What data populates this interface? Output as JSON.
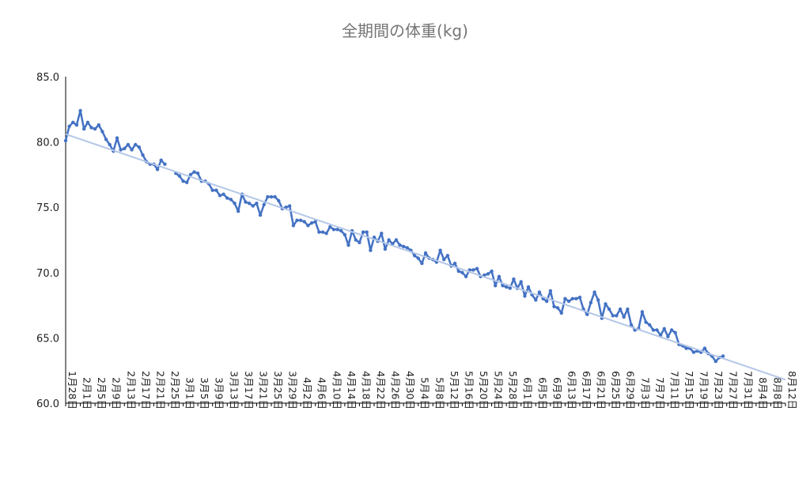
{
  "chart_data": {
    "type": "line",
    "title": "全期間の体重(kg)",
    "xlabel": "",
    "ylabel": "",
    "ylim": [
      60,
      85
    ],
    "yticks": [
      "60.0",
      "65.0",
      "70.0",
      "75.0",
      "80.0",
      "85.0"
    ],
    "x_start": "1月28日",
    "x_end": "8月12日",
    "x_tick_labels": [
      "1月28日",
      "2月1日",
      "2月5日",
      "2月9日",
      "2月13日",
      "2月17日",
      "2月21日",
      "2月25日",
      "3月1日",
      "3月5日",
      "3月9日",
      "3月13日",
      "3月17日",
      "3月21日",
      "3月25日",
      "3月29日",
      "4月2日",
      "4月6日",
      "4月10日",
      "4月14日",
      "4月18日",
      "4月22日",
      "4月26日",
      "4月30日",
      "5月4日",
      "5月8日",
      "5月12日",
      "5月16日",
      "5月20日",
      "5月24日",
      "5月28日",
      "6月1日",
      "6月5日",
      "6月9日",
      "6月13日",
      "6月17日",
      "6月21日",
      "6月25日",
      "6月29日",
      "7月3日",
      "7月7日",
      "7月11日",
      "7月15日",
      "7月19日",
      "7月23日",
      "7月27日",
      "7月31日",
      "8月4日",
      "8月8日",
      "8月12日"
    ],
    "series": [
      {
        "color": "#4472c4",
        "points": [
          [
            "1月28日",
            80.1
          ],
          [
            "1月29日",
            81.2
          ],
          [
            "1月30日",
            81.5
          ],
          [
            "1月31日",
            81.3
          ],
          [
            "2月1日",
            82.4
          ],
          [
            "2月2日",
            81.0
          ],
          [
            "2月3日",
            81.5
          ],
          [
            "2月4日",
            81.1
          ],
          [
            "2月5日",
            81.0
          ],
          [
            "2月6日",
            81.3
          ],
          [
            "2月7日",
            80.8
          ],
          [
            "2月8日",
            80.2
          ],
          [
            "2月9日",
            79.8
          ],
          [
            "2月10日",
            79.3
          ],
          [
            "2月11日",
            80.3
          ],
          [
            "2月12日",
            79.4
          ],
          [
            "2月13日",
            79.5
          ],
          [
            "2月14日",
            79.8
          ],
          [
            "2月15日",
            79.4
          ],
          [
            "2月16日",
            79.8
          ],
          [
            "2月17日",
            79.6
          ],
          [
            "2月18日",
            79.0
          ],
          [
            "2月19日",
            78.5
          ],
          [
            "2月20日",
            78.3
          ],
          [
            "2月21日",
            78.3
          ],
          [
            "2月22日",
            77.9
          ],
          [
            "2月23日",
            78.6
          ],
          [
            "2月24日",
            78.3
          ],
          [
            "2月27日",
            77.6
          ],
          [
            "2月28日",
            77.4
          ],
          [
            "3月1日",
            77.0
          ],
          [
            "3月2日",
            76.9
          ],
          [
            "3月3日",
            77.5
          ],
          [
            "3月4日",
            77.7
          ],
          [
            "3月5日",
            77.6
          ],
          [
            "3月6日",
            77.0
          ],
          [
            "3月7日",
            77.0
          ],
          [
            "3月8日",
            76.8
          ],
          [
            "3月9日",
            76.3
          ],
          [
            "3月10日",
            76.3
          ],
          [
            "3月11日",
            75.9
          ],
          [
            "3月12日",
            76.0
          ],
          [
            "3月13日",
            75.7
          ],
          [
            "3月14日",
            75.6
          ],
          [
            "3月15日",
            75.3
          ],
          [
            "3月16日",
            74.7
          ],
          [
            "3月17日",
            76.0
          ],
          [
            "3月18日",
            75.4
          ],
          [
            "3月19日",
            75.3
          ],
          [
            "3月20日",
            75.1
          ],
          [
            "3月21日",
            75.3
          ],
          [
            "3月22日",
            74.4
          ],
          [
            "3月23日",
            75.2
          ],
          [
            "3月24日",
            75.8
          ],
          [
            "3月25日",
            75.8
          ],
          [
            "3月26日",
            75.8
          ],
          [
            "3月27日",
            75.5
          ],
          [
            "3月28日",
            74.9
          ],
          [
            "3月29日",
            75.0
          ],
          [
            "3月30日",
            75.1
          ],
          [
            "3月31日",
            73.6
          ],
          [
            "4月1日",
            74.0
          ],
          [
            "4月2日",
            74.0
          ],
          [
            "4月3日",
            73.9
          ],
          [
            "4月4日",
            73.6
          ],
          [
            "4月5日",
            73.8
          ],
          [
            "4月6日",
            73.9
          ],
          [
            "4月7日",
            73.1
          ],
          [
            "4月8日",
            73.1
          ],
          [
            "4月9日",
            73.0
          ],
          [
            "4月10日",
            73.5
          ],
          [
            "4月11日",
            73.3
          ],
          [
            "4月12日",
            73.3
          ],
          [
            "4月13日",
            73.2
          ],
          [
            "4月14日",
            72.9
          ],
          [
            "4月15日",
            72.1
          ],
          [
            "4月16日",
            73.2
          ],
          [
            "4月17日",
            72.5
          ],
          [
            "4月18日",
            72.3
          ],
          [
            "4月19日",
            73.1
          ],
          [
            "4月20日",
            73.1
          ],
          [
            "4月21日",
            71.7
          ],
          [
            "4月22日",
            72.7
          ],
          [
            "4月23日",
            72.4
          ],
          [
            "4月24日",
            73.0
          ],
          [
            "4月25日",
            71.8
          ],
          [
            "4月26日",
            72.5
          ],
          [
            "4月27日",
            72.2
          ],
          [
            "4月28日",
            72.5
          ],
          [
            "4月29日",
            72.1
          ],
          [
            "4月30日",
            72.0
          ],
          [
            "5月1日",
            71.9
          ],
          [
            "5月2日",
            71.7
          ],
          [
            "5月3日",
            71.3
          ],
          [
            "5月4日",
            71.1
          ],
          [
            "5月5日",
            70.7
          ],
          [
            "5月6日",
            71.5
          ],
          [
            "5月7日",
            71.1
          ],
          [
            "5月8日",
            71.0
          ],
          [
            "5月9日",
            70.8
          ],
          [
            "5月10日",
            71.7
          ],
          [
            "5月11日",
            71.0
          ],
          [
            "5月12日",
            71.3
          ],
          [
            "5月13日",
            70.5
          ],
          [
            "5月14日",
            70.7
          ],
          [
            "5月15日",
            70.1
          ],
          [
            "5月16日",
            70.0
          ],
          [
            "5月17日",
            69.7
          ],
          [
            "5月18日",
            70.2
          ],
          [
            "5月19日",
            70.2
          ],
          [
            "5月20日",
            70.3
          ],
          [
            "5月21日",
            69.7
          ],
          [
            "5月22日",
            69.8
          ],
          [
            "5月23日",
            69.9
          ],
          [
            "5月24日",
            70.1
          ],
          [
            "5月25日",
            69.0
          ],
          [
            "5月26日",
            69.7
          ],
          [
            "5月27日",
            69.0
          ],
          [
            "5月28日",
            68.9
          ],
          [
            "5月29日",
            68.8
          ],
          [
            "5月30日",
            69.5
          ],
          [
            "5月31日",
            68.8
          ],
          [
            "6月1日",
            69.3
          ],
          [
            "6月2日",
            68.2
          ],
          [
            "6月3日",
            68.9
          ],
          [
            "6月4日",
            68.3
          ],
          [
            "6月5日",
            67.9
          ],
          [
            "6月6日",
            68.5
          ],
          [
            "6月7日",
            68.0
          ],
          [
            "6月8日",
            67.8
          ],
          [
            "6月9日",
            68.6
          ],
          [
            "6月10日",
            67.4
          ],
          [
            "6月11日",
            67.3
          ],
          [
            "6月12日",
            66.9
          ],
          [
            "6月13日",
            68.0
          ],
          [
            "6月14日",
            67.8
          ],
          [
            "6月15日",
            68.0
          ],
          [
            "6月16日",
            68.0
          ],
          [
            "6月17日",
            68.1
          ],
          [
            "6月18日",
            67.2
          ],
          [
            "6月19日",
            66.8
          ],
          [
            "6月20日",
            67.7
          ],
          [
            "6月21日",
            68.5
          ],
          [
            "6月22日",
            67.9
          ],
          [
            "6月23日",
            66.5
          ],
          [
            "6月24日",
            67.6
          ],
          [
            "6月25日",
            67.2
          ],
          [
            "6月26日",
            66.7
          ],
          [
            "6月27日",
            66.7
          ],
          [
            "6月28日",
            67.2
          ],
          [
            "6月29日",
            66.6
          ],
          [
            "6月30日",
            67.2
          ],
          [
            "7月1日",
            66.0
          ],
          [
            "7月2日",
            65.6
          ],
          [
            "7月3日",
            65.7
          ],
          [
            "7月4日",
            67.0
          ],
          [
            "7月5日",
            66.2
          ],
          [
            "7月6日",
            66.0
          ],
          [
            "7月7日",
            65.6
          ],
          [
            "7月8日",
            65.6
          ],
          [
            "7月9日",
            65.2
          ],
          [
            "7月10日",
            65.7
          ],
          [
            "7月11日",
            65.1
          ],
          [
            "7月12日",
            65.6
          ],
          [
            "7月13日",
            65.4
          ],
          [
            "7月14日",
            64.5
          ],
          [
            "7月15日",
            64.4
          ],
          [
            "7月16日",
            64.2
          ],
          [
            "7月17日",
            64.2
          ],
          [
            "7月18日",
            63.9
          ],
          [
            "7月19日",
            64.0
          ],
          [
            "7月20日",
            63.9
          ],
          [
            "7月21日",
            64.2
          ],
          [
            "7月22日",
            63.8
          ],
          [
            "7月23日",
            63.6
          ],
          [
            "7月24日",
            63.2
          ],
          [
            "7月25日",
            63.5
          ],
          [
            "7月26日",
            63.6
          ]
        ]
      },
      {
        "type": "trendline",
        "color": "#b4c7e7",
        "points": [
          [
            "1月28日",
            80.6
          ],
          [
            "8月12日",
            61.8
          ]
        ]
      }
    ]
  }
}
